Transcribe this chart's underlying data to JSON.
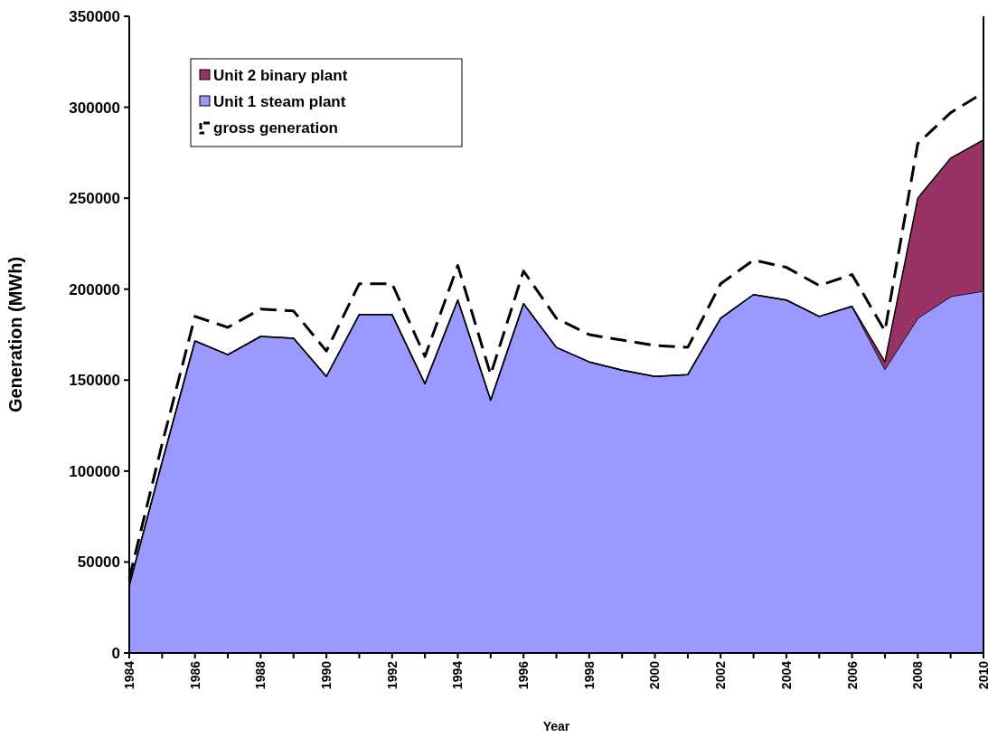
{
  "chart_data": {
    "type": "area",
    "xlabel": "Year",
    "ylabel": "Generation (MWh)",
    "stacked": true,
    "x": [
      1984,
      1985,
      1986,
      1987,
      1988,
      1989,
      1990,
      1991,
      1992,
      1993,
      1994,
      1995,
      1996,
      1997,
      1998,
      1999,
      2000,
      2001,
      2002,
      2003,
      2004,
      2005,
      2006,
      2007,
      2008,
      2009,
      2010
    ],
    "series": [
      {
        "name": "Unit 1 steam plant",
        "color": "#9999ff",
        "values": [
          37000,
          105000,
          171500,
          164000,
          174000,
          173000,
          152000,
          186000,
          186000,
          148000,
          194000,
          139000,
          192000,
          168000,
          160000,
          155500,
          152000,
          153000,
          184000,
          197000,
          194000,
          185000,
          190500,
          156000,
          184000,
          196000,
          199000
        ]
      },
      {
        "name": "Unit 2 binary plant",
        "color": "#993366",
        "values": [
          0,
          0,
          0,
          0,
          0,
          0,
          0,
          0,
          0,
          0,
          0,
          0,
          0,
          0,
          0,
          0,
          0,
          0,
          0,
          0,
          0,
          0,
          0,
          4000,
          66000,
          76000,
          83000
        ]
      },
      {
        "name": "gross generation",
        "type": "line",
        "color": "#000000",
        "line_style": "dashed",
        "values": [
          41000,
          115000,
          185000,
          179000,
          189000,
          188000,
          166000,
          203000,
          203000,
          163000,
          213000,
          153000,
          210000,
          184000,
          175000,
          172000,
          169000,
          168000,
          203000,
          216000,
          212000,
          202000,
          208000,
          177000,
          280000,
          297000,
          308000
        ]
      }
    ],
    "xlim": [
      1984,
      2010
    ],
    "xticks": [
      1984,
      {
        "value": 1985,
        "label": null
      },
      1986,
      {
        "value": 1987,
        "label": null
      },
      1988,
      {
        "value": 1989,
        "label": null
      },
      1990,
      {
        "value": 1991,
        "label": null
      },
      1992,
      {
        "value": 1993,
        "label": null
      },
      1994,
      {
        "value": 1995,
        "label": null
      },
      1996,
      {
        "value": 1997,
        "label": null
      },
      1998,
      {
        "value": 1999,
        "label": null
      },
      2000,
      {
        "value": 2001,
        "label": null
      },
      2002,
      {
        "value": 2003,
        "label": null
      },
      2004,
      {
        "value": 2005,
        "label": null
      },
      2006,
      {
        "value": 2007,
        "label": null
      },
      2008,
      {
        "value": 2009,
        "label": null
      },
      2010
    ],
    "ylim": [
      0,
      350000
    ],
    "yticks": [
      0,
      50000,
      100000,
      150000,
      200000,
      250000,
      300000,
      350000
    ],
    "legend": "top left",
    "grid": false
  }
}
